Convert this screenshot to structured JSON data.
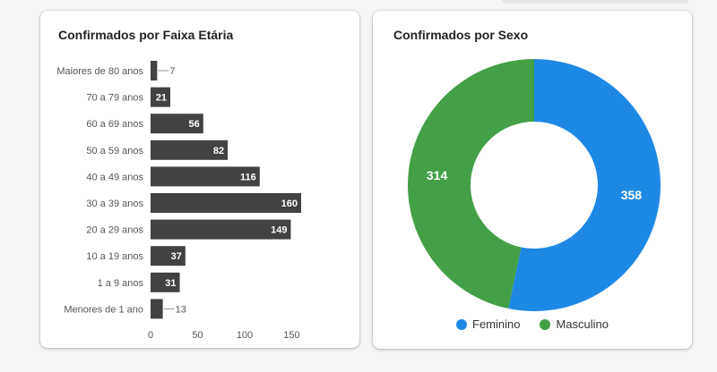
{
  "age_card": {
    "title": "Confirmados por Faixa Etária"
  },
  "sex_card": {
    "title": "Confirmados por Sexo"
  },
  "chart_data": [
    {
      "type": "bar",
      "orientation": "horizontal",
      "title": "Confirmados por Faixa Etária",
      "categories": [
        "Maiores de 80 anos",
        "70 a 79 anos",
        "60 a 69 anos",
        "50 a 59 anos",
        "40 a 49 anos",
        "30 a 39 anos",
        "20 a 29 anos",
        "10 a 19 anos",
        "1 a 9 anos",
        "Menores de 1 ano"
      ],
      "values": [
        7,
        21,
        56,
        82,
        116,
        160,
        149,
        37,
        31,
        13
      ],
      "xticks": [
        0,
        50,
        100,
        150
      ],
      "xlim": [
        0,
        160
      ],
      "bar_color": "#424242",
      "grid": false
    },
    {
      "type": "pie",
      "donut": true,
      "title": "Confirmados por Sexo",
      "series": [
        {
          "name": "Feminino",
          "value": 358,
          "color": "#1e88e5"
        },
        {
          "name": "Masculino",
          "value": 314,
          "color": "#43a047"
        }
      ],
      "legend_position": "bottom"
    }
  ]
}
